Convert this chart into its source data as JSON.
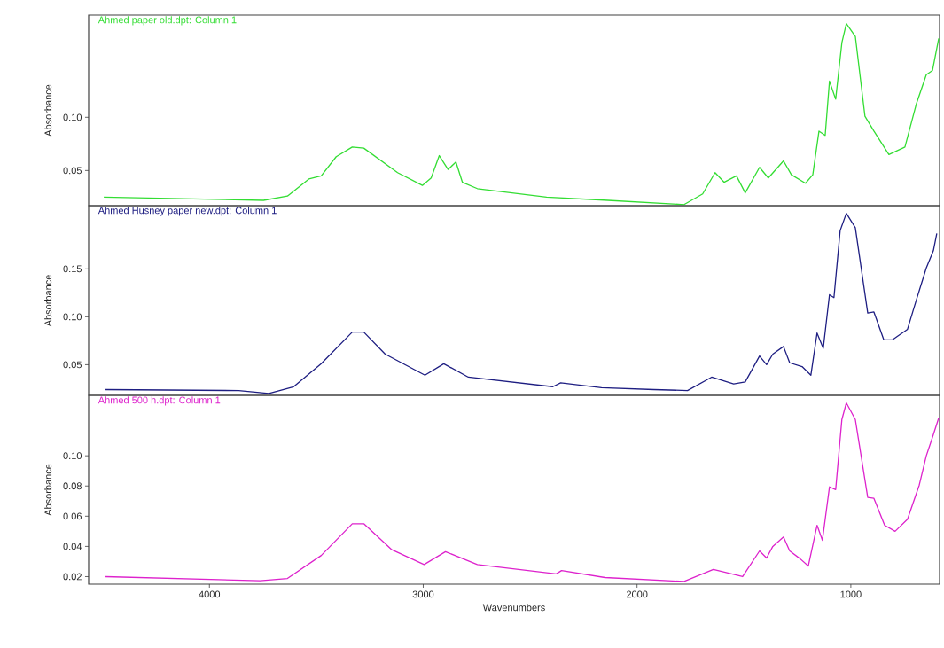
{
  "chart_data": [
    {
      "type": "line",
      "ylabel": "Absorbance",
      "xlim": [
        4565,
        585
      ],
      "ylim": [
        0.017,
        0.196
      ],
      "yticks": [
        {
          "value": 0.05,
          "label": "0.05"
        },
        {
          "value": 0.1,
          "label": "0.10"
        }
      ],
      "tick_labels": "y",
      "series": [
        {
          "name": "Ahmed paper old.dpt: Column 1",
          "color": "#33dd33",
          "x": [
            4494,
            3747,
            3635,
            3535,
            3477,
            3407,
            3332,
            3278,
            3120,
            3004,
            2963,
            2925,
            2884,
            2847,
            2817,
            2747,
            2423,
            2137,
            1780,
            1693,
            1635,
            1593,
            1535,
            1494,
            1427,
            1386,
            1315,
            1278,
            1212,
            1178,
            1149,
            1120,
            1100,
            1071,
            1042,
            1021,
            979,
            934,
            892,
            822,
            747,
            693,
            647,
            618,
            589
          ],
          "values": [
            0.025,
            0.022,
            0.026,
            0.042,
            0.045,
            0.063,
            0.072,
            0.071,
            0.048,
            0.036,
            0.043,
            0.064,
            0.051,
            0.058,
            0.039,
            0.033,
            0.025,
            0.022,
            0.018,
            0.028,
            0.048,
            0.039,
            0.045,
            0.029,
            0.053,
            0.043,
            0.059,
            0.046,
            0.038,
            0.046,
            0.087,
            0.083,
            0.134,
            0.117,
            0.17,
            0.188,
            0.176,
            0.101,
            0.087,
            0.065,
            0.072,
            0.113,
            0.14,
            0.144,
            0.174
          ]
        }
      ]
    },
    {
      "type": "line",
      "ylabel": "Absorbance",
      "xlim": [
        4565,
        585
      ],
      "ylim": [
        0.018,
        0.216
      ],
      "yticks": [
        {
          "value": 0.05,
          "label": "0.05"
        },
        {
          "value": 0.1,
          "label": "0.10"
        },
        {
          "value": 0.15,
          "label": "0.15"
        }
      ],
      "tick_labels": "y",
      "series": [
        {
          "name": "Ahmed Husney paper new.dpt: Column 1",
          "color": "#1e1e82",
          "x": [
            4486,
            3863,
            3722,
            3606,
            3477,
            3332,
            3278,
            3178,
            2992,
            2904,
            2789,
            2394,
            2357,
            2166,
            1921,
            1764,
            1651,
            1548,
            1494,
            1427,
            1394,
            1365,
            1315,
            1286,
            1228,
            1187,
            1158,
            1129,
            1100,
            1079,
            1050,
            1021,
            979,
            921,
            892,
            846,
            805,
            735,
            693,
            647,
            614,
            598
          ],
          "values": [
            0.024,
            0.023,
            0.02,
            0.027,
            0.051,
            0.084,
            0.084,
            0.061,
            0.039,
            0.051,
            0.037,
            0.027,
            0.031,
            0.026,
            0.024,
            0.023,
            0.037,
            0.03,
            0.032,
            0.059,
            0.05,
            0.061,
            0.069,
            0.052,
            0.048,
            0.039,
            0.083,
            0.067,
            0.123,
            0.12,
            0.19,
            0.208,
            0.193,
            0.104,
            0.105,
            0.076,
            0.076,
            0.087,
            0.118,
            0.151,
            0.169,
            0.187
          ]
        }
      ]
    },
    {
      "type": "line",
      "xlabel": "Wavenumbers",
      "ylabel": "Absorbance",
      "xlim": [
        4565,
        585
      ],
      "xticks": [
        4000,
        3000,
        2000,
        1000
      ],
      "ylim": [
        0.015,
        0.14
      ],
      "yticks": [
        {
          "value": 0.02,
          "label": "0.02"
        },
        {
          "value": 0.04,
          "label": "0.04"
        },
        {
          "value": 0.06,
          "label": "0.06"
        },
        {
          "value": 0.08,
          "label": "0.08"
        },
        {
          "value": 0.1,
          "label": "0.10"
        }
      ],
      "series": [
        {
          "name": "Ahmed 500 h.dpt: Column 1",
          "color": "#dd22cc",
          "x": [
            4486,
            3763,
            3635,
            3477,
            3332,
            3278,
            3149,
            2996,
            2896,
            2747,
            2378,
            2353,
            2150,
            1780,
            1643,
            1506,
            1427,
            1394,
            1365,
            1315,
            1286,
            1237,
            1199,
            1158,
            1133,
            1100,
            1071,
            1042,
            1021,
            979,
            921,
            892,
            842,
            793,
            735,
            680,
            647,
            614,
            589
          ],
          "values": [
            0.02,
            0.0173,
            0.0188,
            0.034,
            0.055,
            0.055,
            0.038,
            0.028,
            0.0365,
            0.028,
            0.0218,
            0.024,
            0.0194,
            0.0168,
            0.0247,
            0.02,
            0.037,
            0.0323,
            0.04,
            0.0462,
            0.037,
            0.0318,
            0.027,
            0.054,
            0.044,
            0.0794,
            0.0776,
            0.124,
            0.135,
            0.124,
            0.0724,
            0.0718,
            0.054,
            0.05,
            0.058,
            0.0806,
            0.1,
            0.114,
            0.125
          ]
        }
      ]
    }
  ]
}
